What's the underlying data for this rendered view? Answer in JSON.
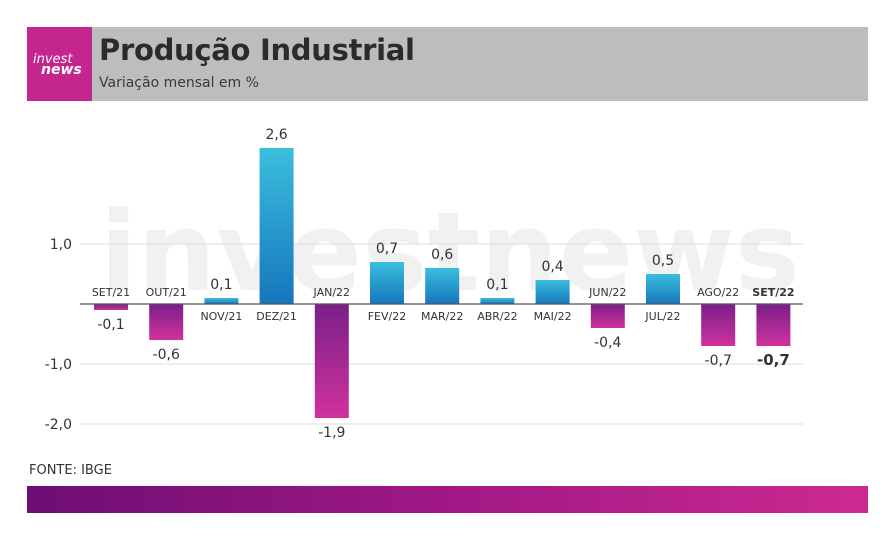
{
  "header": {
    "logo_top": "invest",
    "logo_bottom": "news",
    "title": "Produção Industrial",
    "subtitle": "Variação mensal em %"
  },
  "watermark": "investnews",
  "colors": {
    "positive_top": "#3bbedd",
    "positive_bottom": "#1576bd",
    "negative_top": "#7a1f8a",
    "negative_bottom": "#d0329c",
    "header_bg": "#bdbdbd",
    "logo_bg": "#c5258f"
  },
  "chart_data": {
    "type": "bar",
    "categories": [
      "SET/21",
      "OUT/21",
      "NOV/21",
      "DEZ/21",
      "JAN/22",
      "FEV/22",
      "MAR/22",
      "ABR/22",
      "MAI/22",
      "JUN/22",
      "JUL/22",
      "AGO/22",
      "SET/22"
    ],
    "values": [
      -0.1,
      -0.6,
      0.1,
      2.6,
      -1.9,
      0.7,
      0.6,
      0.1,
      0.4,
      -0.4,
      0.5,
      -0.7,
      -0.7
    ],
    "value_labels": [
      "-0,1",
      "-0,6",
      "0,1",
      "2,6",
      "-1,9",
      "0,7",
      "0,6",
      "0,1",
      "0,4",
      "-0,4",
      "0,5",
      "-0,7",
      "-0,7"
    ],
    "highlight_index": 12,
    "yticks": [
      1.0,
      -1.0,
      -2.0
    ],
    "ytick_labels": [
      "1,0",
      "-1,0",
      "-2,0"
    ],
    "ylim": [
      -2.0,
      2.6
    ],
    "grid": true
  },
  "source": "FONTE: IBGE"
}
